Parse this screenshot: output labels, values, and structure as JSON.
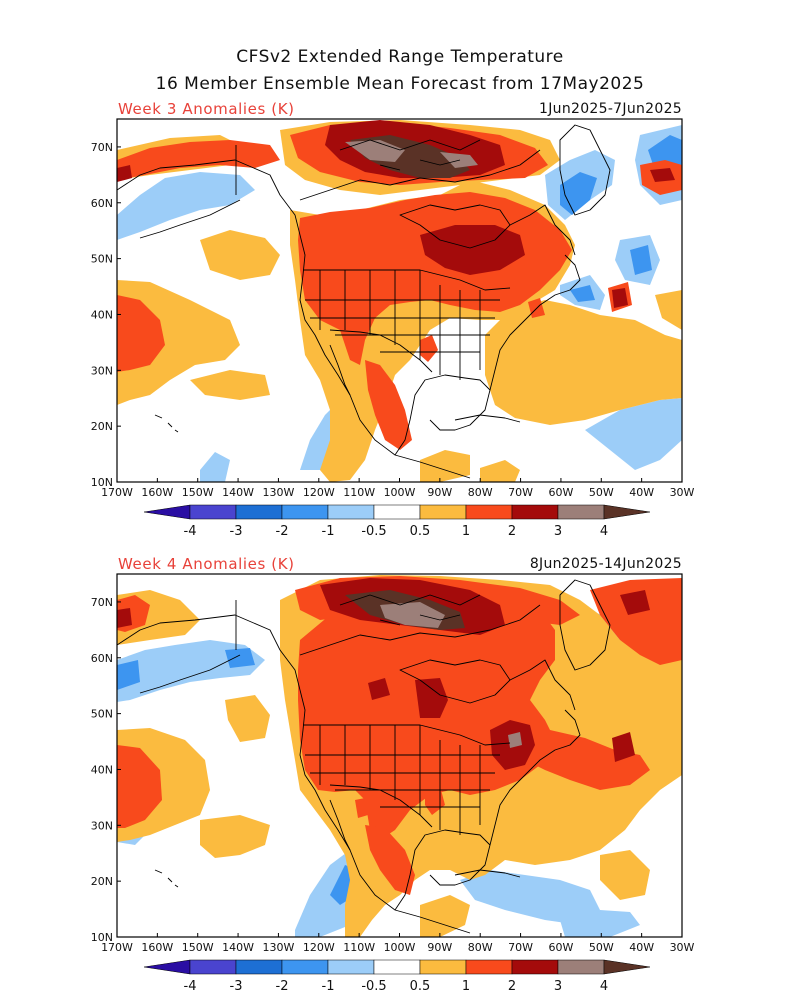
{
  "header": {
    "title_line1": "CFSv2 Extended Range Temperature",
    "title_line2": "16 Member Ensemble Mean Forecast from 17May2025"
  },
  "panels": [
    {
      "label": "Week 3 Anomalies (K)",
      "date_range": "1Jun2025-7Jun2025"
    },
    {
      "label": "Week 4 Anomalies (K)",
      "date_range": "8Jun2025-14Jun2025"
    }
  ],
  "axes": {
    "lon_labels": [
      "170W",
      "160W",
      "150W",
      "140W",
      "130W",
      "120W",
      "110W",
      "100W",
      "90W",
      "80W",
      "70W",
      "60W",
      "50W",
      "40W",
      "30W"
    ],
    "lat_labels": [
      "10N",
      "20N",
      "30N",
      "40N",
      "50N",
      "60N",
      "70N"
    ]
  },
  "colorbar": {
    "colors": [
      "#2a0ea3",
      "#4a44cf",
      "#1d6fd4",
      "#3d95f0",
      "#9ccdf8",
      "#ffffff",
      "#fbbb3f",
      "#f84a1c",
      "#a40b0b",
      "#9c7f79",
      "#5a3226"
    ],
    "tick_labels": [
      "-4",
      "-3",
      "-2",
      "-1",
      "-0.5",
      "0.5",
      "1",
      "2",
      "3",
      "4"
    ]
  },
  "palette": {
    "land_neutral": "#ffffff",
    "coast": "#000000"
  }
}
